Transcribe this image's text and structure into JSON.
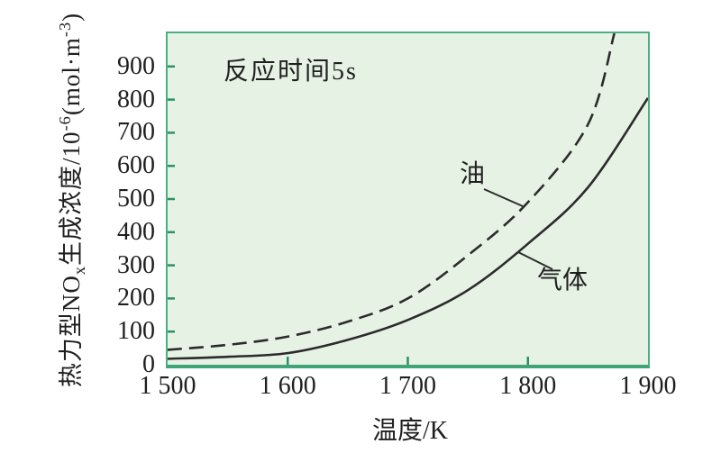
{
  "chart_data": {
    "type": "line",
    "annotation": "反应时间5s",
    "xlabel": "温度/K",
    "ylabel_parts": [
      "热力型NO",
      "x",
      "生成浓度/10",
      "-6",
      "(mol·m",
      "-3",
      ")"
    ],
    "xlim": [
      1500,
      1900
    ],
    "ylim": [
      0,
      1000
    ],
    "grid": false,
    "legend_position": "inline-labels",
    "x_axis": {
      "title": "温度/K",
      "ticks": [
        {
          "value": 1500,
          "label": "1 500"
        },
        {
          "value": 1600,
          "label": "1 600"
        },
        {
          "value": 1700,
          "label": "1 700"
        },
        {
          "value": 1800,
          "label": "1 800"
        },
        {
          "value": 1900,
          "label": "1 900"
        }
      ]
    },
    "y_axis": {
      "ticks": [
        {
          "value": 0,
          "label": "0"
        },
        {
          "value": 100,
          "label": "100"
        },
        {
          "value": 200,
          "label": "200"
        },
        {
          "value": 300,
          "label": "300"
        },
        {
          "value": 400,
          "label": "400"
        },
        {
          "value": 500,
          "label": "500"
        },
        {
          "value": 600,
          "label": "600"
        },
        {
          "value": 700,
          "label": "700"
        },
        {
          "value": 800,
          "label": "800"
        },
        {
          "value": 900,
          "label": "900"
        }
      ]
    },
    "series": [
      {
        "id": "oil",
        "name": "油",
        "line_style": "dashed",
        "points": [
          [
            1500,
            45
          ],
          [
            1550,
            60
          ],
          [
            1600,
            85
          ],
          [
            1650,
            130
          ],
          [
            1700,
            200
          ],
          [
            1750,
            330
          ],
          [
            1800,
            490
          ],
          [
            1850,
            725
          ],
          [
            1872,
            1000
          ]
        ]
      },
      {
        "id": "gas",
        "name": "气体",
        "line_style": "solid",
        "points": [
          [
            1500,
            18
          ],
          [
            1550,
            24
          ],
          [
            1600,
            35
          ],
          [
            1650,
            75
          ],
          [
            1700,
            135
          ],
          [
            1750,
            225
          ],
          [
            1800,
            365
          ],
          [
            1850,
            535
          ],
          [
            1900,
            805
          ]
        ]
      }
    ],
    "colors": {
      "plot_background": "#e6f2e4",
      "border": "#4aaf82",
      "tick": "#2e9068",
      "curve": "#2b2b2b",
      "text": "#1f1f1f"
    }
  }
}
